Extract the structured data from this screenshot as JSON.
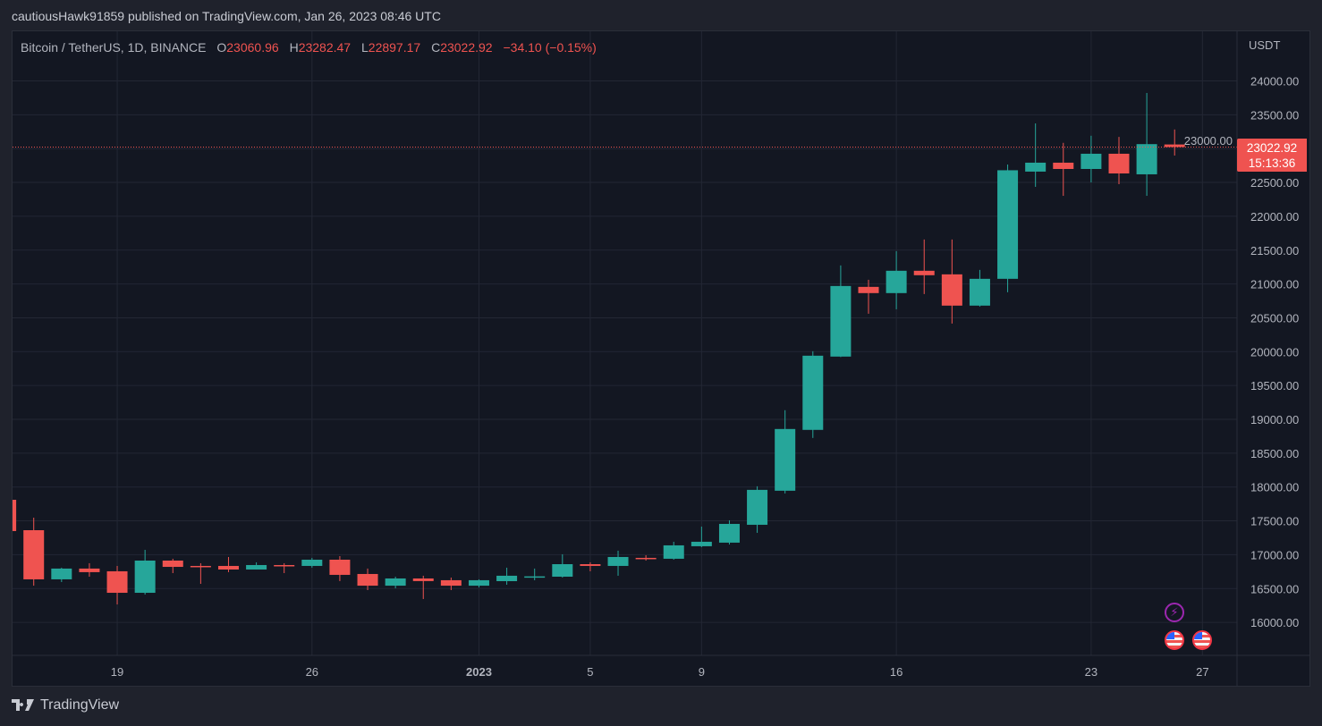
{
  "header": {
    "published": "cautiousHawk91859 published on TradingView.com, Jan 26, 2023 08:46 UTC"
  },
  "legend": {
    "symbol": "Bitcoin / TetherUS, 1D, BINANCE",
    "o_label": "O",
    "o": "23060.96",
    "h_label": "H",
    "h": "23282.47",
    "l_label": "L",
    "l": "22897.17",
    "c_label": "C",
    "c": "23022.92",
    "change": "−34.10 (−0.15%)"
  },
  "price_axis": {
    "unit": "USDT",
    "last_price": "23022.92",
    "countdown": "15:13:36"
  },
  "footer": {
    "brand": "TradingView"
  },
  "colors": {
    "up": "#26a69a",
    "down": "#ef5350",
    "background": "#131722",
    "grid": "#232734"
  },
  "markers": [
    "lightning-icon",
    "us-flag-icon",
    "us-flag-icon"
  ],
  "chart_data": {
    "type": "candlestick",
    "xlabel": "",
    "ylabel": "USDT",
    "ylim": [
      15700,
      24400
    ],
    "grid": true,
    "x_ticks": [
      {
        "date": "2022-12-19",
        "label": "19"
      },
      {
        "date": "2022-12-26",
        "label": "26"
      },
      {
        "date": "2023-01-01",
        "label": "2023"
      },
      {
        "date": "2023-01-05",
        "label": "5"
      },
      {
        "date": "2023-01-09",
        "label": "9"
      },
      {
        "date": "2023-01-16",
        "label": "16"
      },
      {
        "date": "2023-01-23",
        "label": "23"
      },
      {
        "date": "2023-01-27",
        "label": "27"
      }
    ],
    "y_ticks": [
      "16000.00",
      "16500.00",
      "17000.00",
      "17500.00",
      "18000.00",
      "18500.00",
      "19000.00",
      "19500.00",
      "20000.00",
      "20500.00",
      "21000.00",
      "21500.00",
      "22000.00",
      "22500.00",
      "23000.00",
      "23500.00",
      "24000.00"
    ],
    "columns": [
      "date",
      "open",
      "high",
      "low",
      "close"
    ],
    "candles": [
      [
        "2022-12-15",
        17811,
        17850,
        17275,
        17349
      ],
      [
        "2022-12-16",
        17362,
        17547,
        16542,
        16636
      ],
      [
        "2022-12-17",
        16636,
        16808,
        16596,
        16795
      ],
      [
        "2022-12-18",
        16795,
        16874,
        16675,
        16742
      ],
      [
        "2022-12-19",
        16755,
        16834,
        16265,
        16437
      ],
      [
        "2022-12-20",
        16437,
        17072,
        16411,
        16913
      ],
      [
        "2022-12-21",
        16913,
        16940,
        16728,
        16820
      ],
      [
        "2022-12-22",
        16834,
        16874,
        16569,
        16825
      ],
      [
        "2022-12-23",
        16834,
        16966,
        16742,
        16781
      ],
      [
        "2022-12-24",
        16781,
        16887,
        16781,
        16847
      ],
      [
        "2022-12-25",
        16847,
        16874,
        16728,
        16834
      ],
      [
        "2022-12-26",
        16834,
        16953,
        16808,
        16926
      ],
      [
        "2022-12-27",
        16926,
        16979,
        16610,
        16702
      ],
      [
        "2022-12-28",
        16715,
        16795,
        16477,
        16542
      ],
      [
        "2022-12-29",
        16542,
        16675,
        16503,
        16649
      ],
      [
        "2022-12-30",
        16649,
        16689,
        16345,
        16610
      ],
      [
        "2022-12-31",
        16623,
        16662,
        16477,
        16542
      ],
      [
        "2023-01-01",
        16542,
        16636,
        16516,
        16623
      ],
      [
        "2023-01-02",
        16609,
        16808,
        16556,
        16689
      ],
      [
        "2023-01-03",
        16675,
        16795,
        16622,
        16680
      ],
      [
        "2023-01-04",
        16675,
        17006,
        16662,
        16860
      ],
      [
        "2023-01-05",
        16860,
        16887,
        16755,
        16834
      ],
      [
        "2023-01-06",
        16834,
        17059,
        16689,
        16966
      ],
      [
        "2023-01-07",
        16953,
        16992,
        16913,
        16940
      ],
      [
        "2023-01-08",
        16940,
        17191,
        16926,
        17138
      ],
      [
        "2023-01-09",
        17125,
        17415,
        17112,
        17191
      ],
      [
        "2023-01-10",
        17178,
        17508,
        17151,
        17455
      ],
      [
        "2023-01-11",
        17442,
        18011,
        17323,
        17958
      ],
      [
        "2023-01-12",
        17945,
        19135,
        17905,
        18857
      ],
      [
        "2023-01-13",
        18844,
        20006,
        18725,
        19940
      ],
      [
        "2023-01-14",
        19927,
        21274,
        19920,
        20970
      ],
      [
        "2023-01-15",
        20957,
        21062,
        20560,
        20865
      ],
      [
        "2023-01-16",
        20865,
        21485,
        20626,
        21195
      ],
      [
        "2023-01-17",
        21195,
        21657,
        20851,
        21129
      ],
      [
        "2023-01-18",
        21142,
        21657,
        20415,
        20680
      ],
      [
        "2023-01-19",
        20680,
        21208,
        20666,
        21076
      ],
      [
        "2023-01-20",
        21076,
        22765,
        20877,
        22680
      ],
      [
        "2023-01-21",
        22660,
        23372,
        22435,
        22792
      ],
      [
        "2023-01-22",
        22792,
        23085,
        22302,
        22699
      ],
      [
        "2023-01-23",
        22699,
        23190,
        22500,
        22924
      ],
      [
        "2023-01-24",
        22924,
        23173,
        22475,
        22633
      ],
      [
        "2023-01-25",
        22620,
        23822,
        22302,
        23066
      ],
      [
        "2023-01-26",
        23060.96,
        23282.47,
        22897.17,
        23022.92
      ]
    ]
  }
}
